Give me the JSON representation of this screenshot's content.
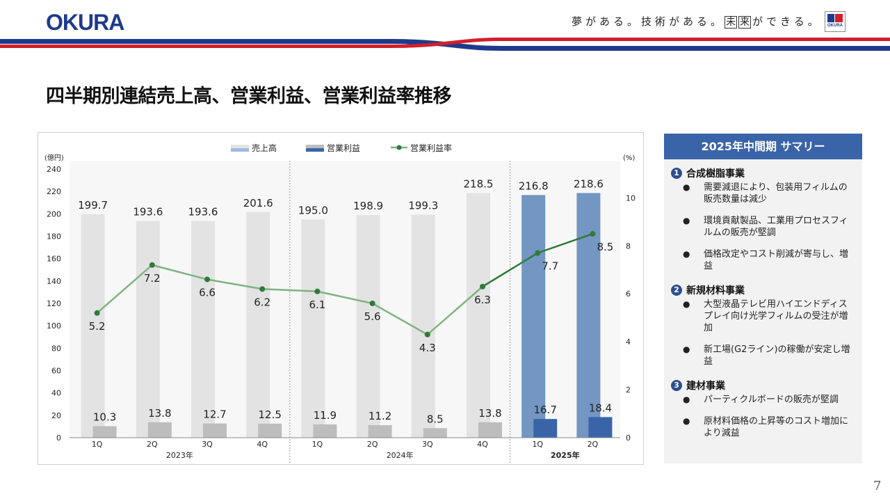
{
  "header": {
    "logo_text": "OKURA",
    "slogan_before": "夢がある。技術がある。",
    "slogan_boxed_1": "未",
    "slogan_boxed_2": "来",
    "slogan_after": "ができる。",
    "mini_logo_text": "OKURA",
    "colors": {
      "brand_blue": "#1f3a8a",
      "brand_red": "#d0202a"
    }
  },
  "page_title": "四半期別連結売上高、営業利益、営業利益率推移",
  "page_number": "7",
  "chart_data": {
    "type": "bar",
    "left_axis_unit": "(億円)",
    "right_axis_unit": "(%)",
    "left_ylim": [
      0,
      240
    ],
    "left_ticks": [
      "0",
      "20",
      "40",
      "60",
      "80",
      "100",
      "120",
      "140",
      "160",
      "180",
      "200",
      "220",
      "240"
    ],
    "right_ylim": [
      0,
      11.2
    ],
    "right_ticks": [
      "0",
      "2",
      "4",
      "6",
      "8",
      "10"
    ],
    "categories": [
      "1Q",
      "2Q",
      "3Q",
      "4Q",
      "1Q",
      "2Q",
      "3Q",
      "4Q",
      "1Q",
      "2Q"
    ],
    "year_groups": [
      {
        "label": "2023年",
        "count": 4
      },
      {
        "label": "2024年",
        "count": 4
      },
      {
        "label": "2025年",
        "count": 2
      }
    ],
    "legend": [
      "売上高",
      "営業利益",
      "営業利益率"
    ],
    "series": [
      {
        "name": "売上高",
        "axis": "left",
        "values": [
          199.7,
          193.6,
          193.6,
          201.6,
          195.0,
          198.9,
          199.3,
          218.5,
          216.8,
          218.6
        ],
        "labels": [
          "199.7",
          "193.6",
          "193.6",
          "201.6",
          "195.0",
          "198.9",
          "199.3",
          "218.5",
          "216.8",
          "218.6"
        ]
      },
      {
        "name": "営業利益",
        "axis": "left",
        "values": [
          10.3,
          13.8,
          12.7,
          12.5,
          11.9,
          11.2,
          8.5,
          13.8,
          16.7,
          18.4
        ],
        "labels": [
          "10.3",
          "13.8",
          "12.7",
          "12.5",
          "11.9",
          "11.2",
          "8.5",
          "13.8",
          "16.7",
          "18.4"
        ]
      },
      {
        "name": "営業利益率",
        "axis": "right",
        "values": [
          5.2,
          7.2,
          6.6,
          6.2,
          6.1,
          5.6,
          4.3,
          6.3,
          7.7,
          8.5
        ],
        "labels": [
          "5.2",
          "7.2",
          "6.6",
          "6.2",
          "6.1",
          "5.6",
          "4.3",
          "6.3",
          "7.7",
          "8.5"
        ]
      }
    ],
    "colors": {
      "sales_past": "#e3e3e3",
      "sales_current": "#7397c2",
      "op_past": "#bdbdbd",
      "op_current": "#3a64a8",
      "margin_past": "#7fb381",
      "margin_current": "#2f7a3a",
      "marker": "#2f7a3a"
    },
    "grid": false,
    "legend_position": "top"
  },
  "summary": {
    "title": "2025年中間期 サマリー",
    "sections": [
      {
        "num": "1",
        "title": "合成樹脂事業",
        "bullets": [
          "需要減退により、包装用フィルムの販売数量は減少",
          "環境貢献製品、工業用プロセスフィルムの販売が堅調",
          "価格改定やコスト削減が寄与し、増益"
        ]
      },
      {
        "num": "2",
        "title": "新規材料事業",
        "bullets": [
          "大型液晶テレビ用ハイエンドディスプレイ向け光学フィルムの受注が増加",
          "新工場(G2ライン)の稼働が安定し増益"
        ]
      },
      {
        "num": "3",
        "title": "建材事業",
        "bullets": [
          "パーティクルボードの販売が堅調",
          "原材料価格の上昇等のコスト増加により減益"
        ]
      }
    ]
  }
}
